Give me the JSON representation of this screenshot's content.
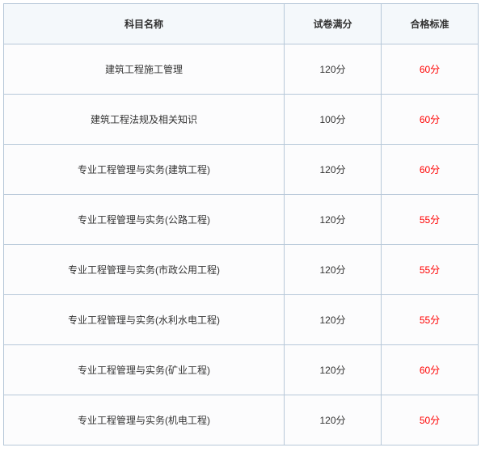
{
  "table": {
    "border_color": "#b7c8d9",
    "header_bg": "#f4f8fb",
    "row_bg": "#fcfcfd",
    "text_color": "#333333",
    "pass_color": "#ff0000",
    "columns": [
      {
        "key": "subject",
        "label": "科目名称"
      },
      {
        "key": "full",
        "label": "试卷满分"
      },
      {
        "key": "pass",
        "label": "合格标准"
      }
    ],
    "rows": [
      {
        "subject": "建筑工程施工管理",
        "full": "120分",
        "pass": "60分"
      },
      {
        "subject": "建筑工程法规及相关知识",
        "full": "100分",
        "pass": "60分"
      },
      {
        "subject": "专业工程管理与实务(建筑工程)",
        "full": "120分",
        "pass": "60分"
      },
      {
        "subject": "专业工程管理与实务(公路工程)",
        "full": "120分",
        "pass": "55分"
      },
      {
        "subject": "专业工程管理与实务(市政公用工程)",
        "full": "120分",
        "pass": "55分"
      },
      {
        "subject": "专业工程管理与实务(水利水电工程)",
        "full": "120分",
        "pass": "55分"
      },
      {
        "subject": "专业工程管理与实务(矿业工程)",
        "full": "120分",
        "pass": "60分"
      },
      {
        "subject": "专业工程管理与实务(机电工程)",
        "full": "120分",
        "pass": "50分"
      }
    ]
  }
}
